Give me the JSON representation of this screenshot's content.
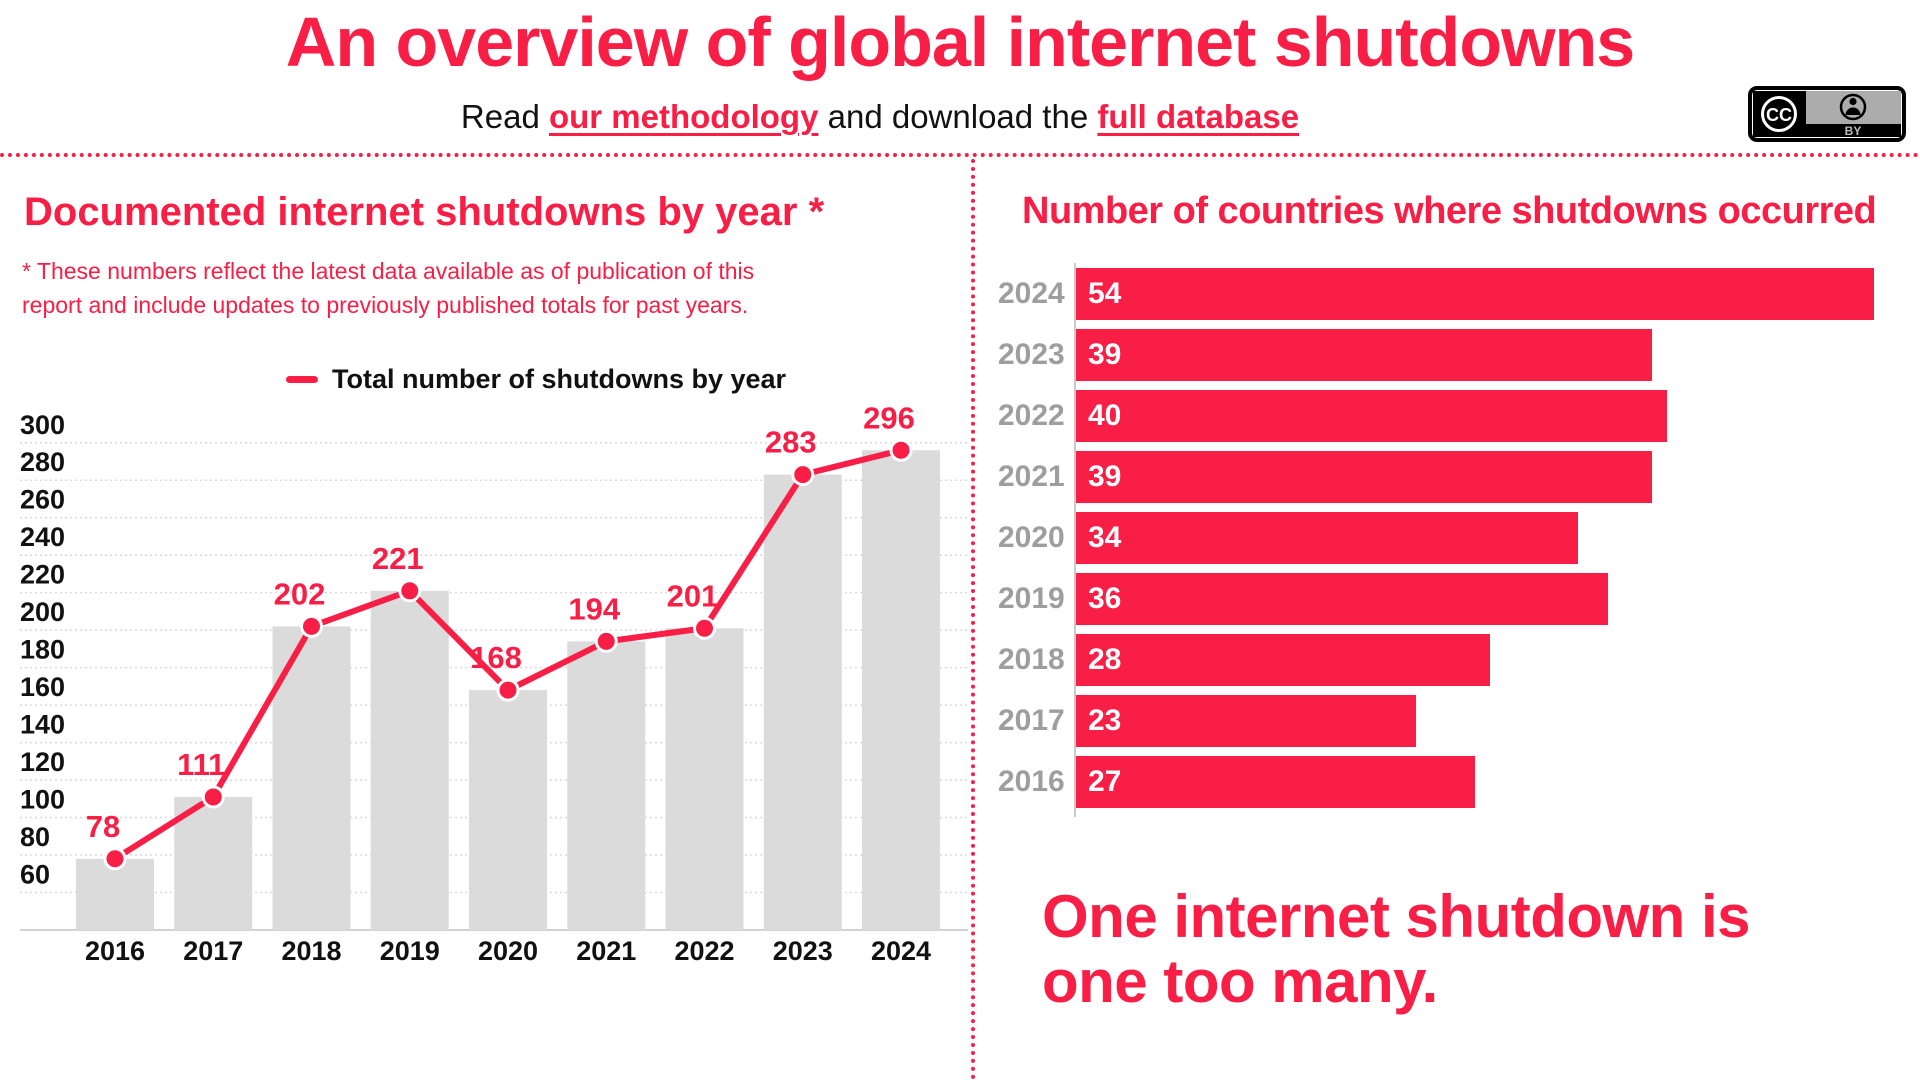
{
  "colors": {
    "accent": "#F81E45",
    "bar_gray": "#DBDBDB",
    "gridline": "#DADADA",
    "year_label_gray": "#9E9E9E",
    "text_black": "#111111"
  },
  "header": {
    "title": "An overview of global internet shutdowns",
    "subtitle": {
      "prefix": "Read ",
      "methodology_link": "our methodology",
      "middle": " and download the ",
      "database_link": "full database"
    },
    "cc_badge": {
      "cc": "CC",
      "by": "BY"
    }
  },
  "left_panel": {
    "heading": "Documented internet shutdowns by year *",
    "footnote_line1": "* These numbers reflect the latest data available as of publication of this",
    "footnote_line2": "report and include updates to previously published totals for past years.",
    "legend_label": "Total number of shutdowns by year"
  },
  "right_panel": {
    "heading": "Number of countries where shutdowns occurred",
    "tagline_line1": "One internet shutdown is",
    "tagline_line2": "one too many."
  },
  "chart_data": [
    {
      "type": "bar",
      "subtype": "columns-with-line-overlay",
      "title": "Documented internet shutdowns by year *",
      "legend": [
        "Total number of shutdowns by year"
      ],
      "legend_position": "top",
      "categories": [
        "2016",
        "2017",
        "2018",
        "2019",
        "2020",
        "2021",
        "2022",
        "2023",
        "2024"
      ],
      "values": [
        78,
        111,
        202,
        221,
        168,
        194,
        201,
        283,
        296
      ],
      "yticks": [
        60,
        80,
        100,
        120,
        140,
        160,
        180,
        200,
        220,
        240,
        260,
        280,
        300
      ],
      "ylim": [
        40,
        310
      ],
      "grid": true,
      "xlabel": "",
      "ylabel": "",
      "bar_color": "#DBDBDB",
      "line_color": "#F81E45"
    },
    {
      "type": "bar",
      "subtype": "horizontal",
      "title": "Number of countries where shutdowns occurred",
      "categories": [
        "2024",
        "2023",
        "2022",
        "2021",
        "2020",
        "2019",
        "2018",
        "2017",
        "2016"
      ],
      "values": [
        54,
        39,
        40,
        39,
        34,
        36,
        28,
        23,
        27
      ],
      "xlim": [
        0,
        57
      ],
      "grid": false,
      "bar_color": "#F81E45",
      "value_label_color": "#FFFFFF",
      "category_label_color": "#9E9E9E"
    }
  ]
}
